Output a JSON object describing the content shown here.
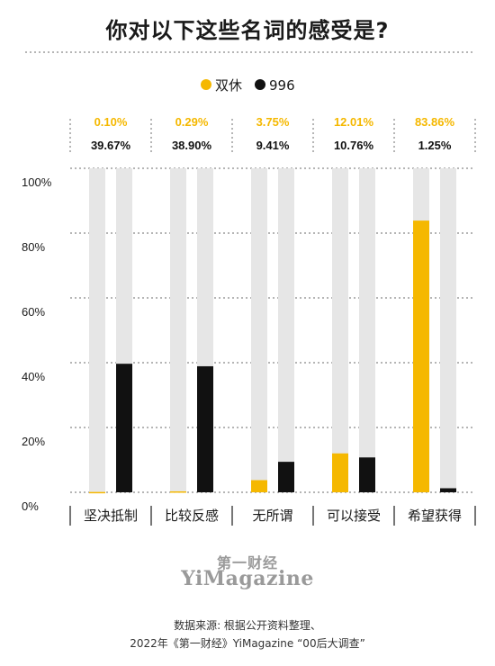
{
  "title": "你对以下这些名词的感受是?",
  "legend": [
    {
      "name": "双休",
      "color": "#f5b800"
    },
    {
      "name": "996",
      "color": "#111111"
    }
  ],
  "y_axis_labels": [
    "100%",
    "80%",
    "60%",
    "40%",
    "20%",
    "0%"
  ],
  "chart_data": {
    "type": "bar",
    "categories": [
      "坚决抵制",
      "比较反感",
      "无所谓",
      "可以接受",
      "希望获得"
    ],
    "series": [
      {
        "name": "双休",
        "values": [
          0.1,
          0.29,
          3.75,
          12.01,
          83.86
        ],
        "labels": [
          "0.10%",
          "0.29%",
          "3.75%",
          "12.01%",
          "83.86%"
        ],
        "color": "#f5b800"
      },
      {
        "name": "996",
        "values": [
          39.67,
          38.9,
          9.41,
          10.76,
          1.25
        ],
        "labels": [
          "39.67%",
          "38.90%",
          "9.41%",
          "10.76%",
          "1.25%"
        ],
        "color": "#111111"
      }
    ],
    "ylim": [
      0,
      100
    ],
    "grid": true,
    "legend_position": "top-center"
  },
  "brand": {
    "cn": "第一财经",
    "en": "YiMagazine"
  },
  "source": {
    "line1": "数据来源: 根据公开资料整理、",
    "line2": "2022年《第一财经》YiMagazine “00后大调查”"
  }
}
